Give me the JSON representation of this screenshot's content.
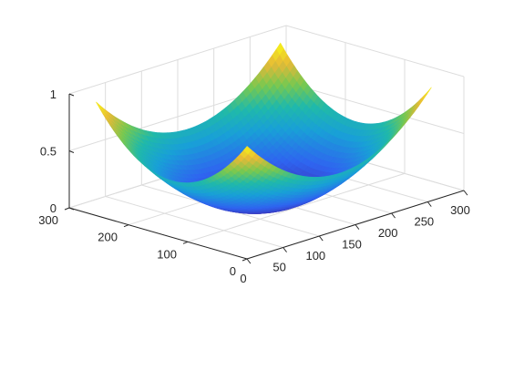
{
  "chart_data": {
    "type": "surface",
    "title": "",
    "xlabel": "",
    "ylabel": "",
    "zlabel": "",
    "x_range": [
      0,
      300
    ],
    "y_range": [
      0,
      300
    ],
    "z_range": [
      0,
      1
    ],
    "x_ticks": [
      0,
      50,
      100,
      150,
      200,
      250,
      300
    ],
    "y_ticks": [
      0,
      100,
      200,
      300
    ],
    "z_ticks": [
      0,
      0.5,
      1
    ],
    "x_tick_labels": [
      "0",
      "50",
      "100",
      "150",
      "200",
      "250",
      "300"
    ],
    "y_tick_labels": [
      "0",
      "100",
      "200",
      "300"
    ],
    "z_tick_labels": [
      "0",
      "0.5",
      "1"
    ],
    "grid": true,
    "box": false,
    "colormap": "parula",
    "surface": {
      "description_of_shape": "bowl",
      "x_extent": [
        1,
        256
      ],
      "y_extent": [
        1,
        256
      ],
      "center": [
        128,
        128
      ],
      "minimum_z": 0.0,
      "corner_z": 1.0
    },
    "colors": {
      "low": "#3e26a8",
      "mid_low": "#2f8be8",
      "mid": "#1fbab4",
      "mid_high": "#8cc93a",
      "high": "#f9fb15"
    }
  }
}
